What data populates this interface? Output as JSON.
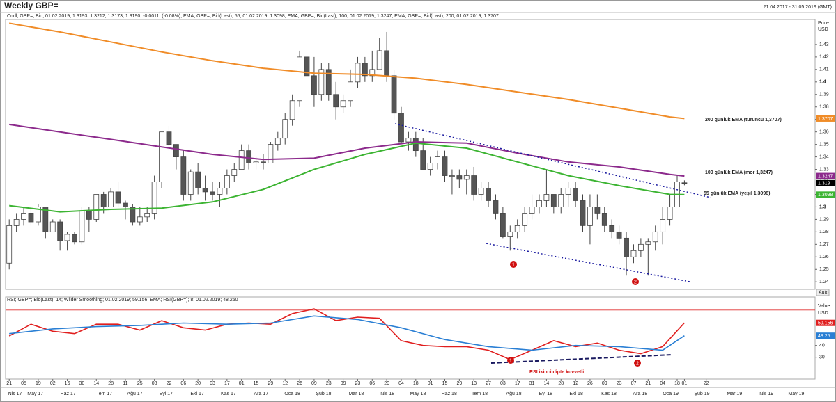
{
  "chart_data": {
    "type": "candlestick",
    "title": "Weekly GBP=",
    "date_range": "21.04.2017 - 31.05.2019 (GMT)",
    "legend_text": "Cndl; GBP=; Bid; 01.02.2019; 1.3193; 1.3212; 1.3173; 1.3190; -0.0011; (-0.08%); EMA; GBP=; Bid(Last); 55; 01.02.2019; 1.3098; EMA; GBP=; Bid(Last); 100; 01.02.2019; 1.3247; EMA; GBP=; Bid(Last); 200; 01.02.2019; 1.3707",
    "y_label": "Price",
    "y_unit": "USD",
    "auto_label": "Auto",
    "ylim": [
      1.234,
      1.45
    ],
    "yticks": [
      1.24,
      1.25,
      1.26,
      1.27,
      1.28,
      1.29,
      1.3,
      1.31,
      1.32,
      1.33,
      1.34,
      1.35,
      1.36,
      1.37,
      1.38,
      1.39,
      1.4,
      1.41,
      1.42,
      1.43
    ],
    "xlim": [
      -0.5,
      111
    ],
    "candles": [
      [
        1.255,
        1.29,
        1.25,
        1.285
      ],
      [
        1.285,
        1.295,
        1.28,
        1.29
      ],
      [
        1.29,
        1.3,
        1.285,
        1.295
      ],
      [
        1.295,
        1.298,
        1.285,
        1.288
      ],
      [
        1.288,
        1.302,
        1.285,
        1.3
      ],
      [
        1.3,
        1.3,
        1.275,
        1.28
      ],
      [
        1.28,
        1.29,
        1.28,
        1.288
      ],
      [
        1.288,
        1.29,
        1.265,
        1.273
      ],
      [
        1.273,
        1.28,
        1.265,
        1.278
      ],
      [
        1.278,
        1.28,
        1.27,
        1.272
      ],
      [
        1.272,
        1.3,
        1.27,
        1.297
      ],
      [
        1.297,
        1.3,
        1.28,
        1.29
      ],
      [
        1.29,
        1.31,
        1.288,
        1.31
      ],
      [
        1.31,
        1.312,
        1.295,
        1.3
      ],
      [
        1.3,
        1.315,
        1.3,
        1.312
      ],
      [
        1.312,
        1.32,
        1.3,
        1.303
      ],
      [
        1.303,
        1.305,
        1.29,
        1.3
      ],
      [
        1.3,
        1.302,
        1.285,
        1.288
      ],
      [
        1.288,
        1.3,
        1.285,
        1.292
      ],
      [
        1.292,
        1.3,
        1.288,
        1.295
      ],
      [
        1.295,
        1.325,
        1.29,
        1.32
      ],
      [
        1.32,
        1.36,
        1.315,
        1.36
      ],
      [
        1.36,
        1.365,
        1.345,
        1.35
      ],
      [
        1.35,
        1.35,
        1.33,
        1.34
      ],
      [
        1.34,
        1.345,
        1.305,
        1.31
      ],
      [
        1.31,
        1.33,
        1.305,
        1.328
      ],
      [
        1.328,
        1.335,
        1.31,
        1.315
      ],
      [
        1.315,
        1.325,
        1.305,
        1.312
      ],
      [
        1.312,
        1.32,
        1.305,
        1.31
      ],
      [
        1.31,
        1.32,
        1.3,
        1.315
      ],
      [
        1.315,
        1.33,
        1.31,
        1.325
      ],
      [
        1.325,
        1.335,
        1.32,
        1.33
      ],
      [
        1.33,
        1.35,
        1.33,
        1.345
      ],
      [
        1.345,
        1.35,
        1.33,
        1.335
      ],
      [
        1.335,
        1.34,
        1.33,
        1.336
      ],
      [
        1.336,
        1.342,
        1.33,
        1.335
      ],
      [
        1.335,
        1.352,
        1.335,
        1.35
      ],
      [
        1.35,
        1.36,
        1.345,
        1.355
      ],
      [
        1.355,
        1.375,
        1.35,
        1.37
      ],
      [
        1.37,
        1.39,
        1.365,
        1.385
      ],
      [
        1.385,
        1.425,
        1.38,
        1.42
      ],
      [
        1.42,
        1.43,
        1.4,
        1.405
      ],
      [
        1.405,
        1.42,
        1.38,
        1.39
      ],
      [
        1.39,
        1.415,
        1.385,
        1.41
      ],
      [
        1.41,
        1.415,
        1.385,
        1.39
      ],
      [
        1.39,
        1.4,
        1.37,
        1.38
      ],
      [
        1.38,
        1.39,
        1.375,
        1.385
      ],
      [
        1.385,
        1.41,
        1.38,
        1.4
      ],
      [
        1.4,
        1.42,
        1.395,
        1.415
      ],
      [
        1.415,
        1.42,
        1.4,
        1.405
      ],
      [
        1.405,
        1.425,
        1.4,
        1.41
      ],
      [
        1.41,
        1.435,
        1.41,
        1.425
      ],
      [
        1.425,
        1.44,
        1.4,
        1.405
      ],
      [
        1.405,
        1.41,
        1.37,
        1.375
      ],
      [
        1.375,
        1.38,
        1.35,
        1.352
      ],
      [
        1.352,
        1.36,
        1.345,
        1.355
      ],
      [
        1.355,
        1.36,
        1.34,
        1.345
      ],
      [
        1.345,
        1.355,
        1.33,
        1.33
      ],
      [
        1.33,
        1.34,
        1.325,
        1.335
      ],
      [
        1.335,
        1.345,
        1.33,
        1.34
      ],
      [
        1.34,
        1.345,
        1.32,
        1.325
      ],
      [
        1.325,
        1.33,
        1.31,
        1.325
      ],
      [
        1.325,
        1.33,
        1.315,
        1.322
      ],
      [
        1.322,
        1.33,
        1.31,
        1.325
      ],
      [
        1.325,
        1.332,
        1.305,
        1.31
      ],
      [
        1.31,
        1.32,
        1.305,
        1.315
      ],
      [
        1.315,
        1.32,
        1.3,
        1.305
      ],
      [
        1.305,
        1.31,
        1.29,
        1.295
      ],
      [
        1.295,
        1.3,
        1.275,
        1.276
      ],
      [
        1.276,
        1.285,
        1.265,
        1.28
      ],
      [
        1.28,
        1.29,
        1.275,
        1.285
      ],
      [
        1.285,
        1.3,
        1.28,
        1.295
      ],
      [
        1.295,
        1.31,
        1.29,
        1.3
      ],
      [
        1.3,
        1.31,
        1.295,
        1.305
      ],
      [
        1.305,
        1.33,
        1.3,
        1.31
      ],
      [
        1.31,
        1.31,
        1.295,
        1.3
      ],
      [
        1.3,
        1.315,
        1.295,
        1.31
      ],
      [
        1.31,
        1.32,
        1.3,
        1.315
      ],
      [
        1.315,
        1.32,
        1.3,
        1.305
      ],
      [
        1.305,
        1.31,
        1.28,
        1.285
      ],
      [
        1.285,
        1.31,
        1.27,
        1.3
      ],
      [
        1.3,
        1.31,
        1.29,
        1.295
      ],
      [
        1.295,
        1.3,
        1.28,
        1.285
      ],
      [
        1.285,
        1.29,
        1.275,
        1.28
      ],
      [
        1.28,
        1.285,
        1.27,
        1.275
      ],
      [
        1.275,
        1.28,
        1.245,
        1.26
      ],
      [
        1.26,
        1.27,
        1.255,
        1.265
      ],
      [
        1.265,
        1.275,
        1.26,
        1.27
      ],
      [
        1.27,
        1.275,
        1.245,
        1.272
      ],
      [
        1.272,
        1.285,
        1.265,
        1.28
      ],
      [
        1.28,
        1.3,
        1.27,
        1.29
      ],
      [
        1.29,
        1.31,
        1.285,
        1.3
      ],
      [
        1.3,
        1.325,
        1.3,
        1.32
      ],
      [
        1.3193,
        1.3212,
        1.3173,
        1.319
      ]
    ],
    "up_color": "#ffffff",
    "down_color": "#555555",
    "ema_x": [
      0,
      7,
      14,
      21,
      28,
      35,
      42,
      49,
      56,
      63,
      70,
      77,
      84,
      91,
      93
    ],
    "series": [
      {
        "name": "200",
        "color": "#f08c28",
        "values": [
          1.447,
          1.44,
          1.432,
          1.424,
          1.417,
          1.411,
          1.407,
          1.406,
          1.403,
          1.398,
          1.392,
          1.386,
          1.379,
          1.372,
          1.3707
        ]
      },
      {
        "name": "100",
        "color": "#8c2a8c",
        "values": [
          1.366,
          1.36,
          1.354,
          1.348,
          1.342,
          1.338,
          1.339,
          1.347,
          1.352,
          1.351,
          1.343,
          1.336,
          1.332,
          1.326,
          1.3247
        ]
      },
      {
        "name": "55",
        "color": "#3cb432",
        "values": [
          1.301,
          1.296,
          1.298,
          1.299,
          1.304,
          1.314,
          1.33,
          1.342,
          1.351,
          1.347,
          1.336,
          1.325,
          1.317,
          1.31,
          1.3098
        ]
      }
    ],
    "annotations": [
      "200 günlük EMA (turuncu 1,3707)",
      "100 günlük EMA (mor 1,3247)",
      "55 günlük EMA (yeşil 1,3098)"
    ],
    "markers": [
      "1",
      "2"
    ],
    "rsi": {
      "legend_text": "RSI; GBP=; Bid(Last); 14; Wilder Smoothing; 01.02.2019; 59.156; EMA; RSI(GBP=); 8; 01.02.2019; 48.250",
      "y_label": "Value",
      "y_unit": "USD",
      "ylim": [
        11.5,
        81.1
      ],
      "yticks": [
        30,
        40
      ],
      "levels": [
        70,
        30
      ],
      "level_color": "#e03030",
      "annotation": "RSI ikinci dipte kuvvetli",
      "series": [
        {
          "name": "RSI",
          "color": "#e01e1e",
          "x": [
            0,
            3,
            6,
            9,
            12,
            15,
            18,
            21,
            24,
            27,
            30,
            33,
            36,
            39,
            42,
            45,
            48,
            51,
            54,
            57,
            60,
            63,
            66,
            69,
            72,
            75,
            78,
            81,
            84,
            87,
            90,
            93
          ],
          "values": [
            48,
            58,
            52,
            50,
            58,
            58,
            53,
            61,
            55,
            53,
            58,
            59,
            58,
            67,
            71,
            61,
            64,
            63,
            44,
            40,
            39,
            39,
            36,
            28,
            36,
            44,
            39,
            42,
            36,
            33,
            39,
            59.156
          ]
        },
        {
          "name": "EMA",
          "color": "#2a7fd4",
          "x": [
            0,
            6,
            12,
            18,
            24,
            30,
            36,
            42,
            48,
            54,
            60,
            66,
            72,
            78,
            84,
            90,
            93
          ],
          "values": [
            50,
            54,
            56,
            57,
            59,
            58,
            59,
            65,
            62,
            55,
            45,
            39,
            36,
            40,
            39,
            36,
            48.25
          ]
        }
      ]
    },
    "day_ticks": [
      {
        "value": 0,
        "label": "21"
      },
      {
        "value": 2,
        "label": "05"
      },
      {
        "value": 4,
        "label": "19"
      },
      {
        "value": 6,
        "label": "02"
      },
      {
        "value": 8,
        "label": "16"
      },
      {
        "value": 10,
        "label": "30"
      },
      {
        "value": 12,
        "label": "14"
      },
      {
        "value": 14,
        "label": "28"
      },
      {
        "value": 16,
        "label": "11"
      },
      {
        "value": 18,
        "label": "25"
      },
      {
        "value": 20,
        "label": "08"
      },
      {
        "value": 22,
        "label": "22"
      },
      {
        "value": 24,
        "label": "06"
      },
      {
        "value": 26,
        "label": "20"
      },
      {
        "value": 28,
        "label": "03"
      },
      {
        "value": 30,
        "label": "17"
      },
      {
        "value": 32,
        "label": "01"
      },
      {
        "value": 34,
        "label": "15"
      },
      {
        "value": 36,
        "label": "29"
      },
      {
        "value": 38,
        "label": "12"
      },
      {
        "value": 40,
        "label": "26"
      },
      {
        "value": 42,
        "label": "09"
      },
      {
        "value": 44,
        "label": "23"
      },
      {
        "value": 46,
        "label": "09"
      },
      {
        "value": 48,
        "label": "23"
      },
      {
        "value": 50,
        "label": "06"
      },
      {
        "value": 52,
        "label": "20"
      },
      {
        "value": 54,
        "label": "04"
      },
      {
        "value": 56,
        "label": "18"
      },
      {
        "value": 58,
        "label": "01"
      },
      {
        "value": 60,
        "label": "15"
      },
      {
        "value": 62,
        "label": "29"
      },
      {
        "value": 64,
        "label": "13"
      },
      {
        "value": 66,
        "label": "27"
      },
      {
        "value": 68,
        "label": "03"
      },
      {
        "value": 70,
        "label": "17"
      },
      {
        "value": 72,
        "label": "31"
      },
      {
        "value": 74,
        "label": "14"
      },
      {
        "value": 76,
        "label": "28"
      },
      {
        "value": 78,
        "label": "12"
      },
      {
        "value": 80,
        "label": "26"
      },
      {
        "value": 82,
        "label": "09"
      },
      {
        "value": 84,
        "label": "23"
      },
      {
        "value": 86,
        "label": "07"
      },
      {
        "value": 88,
        "label": "21"
      },
      {
        "value": 90,
        "label": "04"
      },
      {
        "value": 92,
        "label": "18"
      },
      {
        "value": 93,
        "label": "01"
      },
      {
        "value": 96,
        "label": "22"
      }
    ],
    "month_ticks": [
      {
        "value": 0.8,
        "label": "Nis 17"
      },
      {
        "value": 3.6,
        "label": "May 17"
      },
      {
        "value": 8.1,
        "label": "Haz 17"
      },
      {
        "value": 13.1,
        "label": "Tem 17"
      },
      {
        "value": 17.3,
        "label": "Ağu 17"
      },
      {
        "value": 21.6,
        "label": "Eyl 17"
      },
      {
        "value": 25.9,
        "label": "Eki 17"
      },
      {
        "value": 30.2,
        "label": "Kas 17"
      },
      {
        "value": 34.7,
        "label": "Ara 17"
      },
      {
        "value": 39,
        "label": "Oca 18"
      },
      {
        "value": 43.3,
        "label": "Şub 18"
      },
      {
        "value": 47.8,
        "label": "Mar 18"
      },
      {
        "value": 52.1,
        "label": "Nis 18"
      },
      {
        "value": 56.3,
        "label": "May 18"
      },
      {
        "value": 60.6,
        "label": "Haz 18"
      },
      {
        "value": 64.8,
        "label": "Tem 18"
      },
      {
        "value": 69.5,
        "label": "Ağu 18"
      },
      {
        "value": 73.9,
        "label": "Eyl 18"
      },
      {
        "value": 78.1,
        "label": "Eki 18"
      },
      {
        "value": 82.6,
        "label": "Kas 18"
      },
      {
        "value": 86.9,
        "label": "Ara 18"
      },
      {
        "value": 91.1,
        "label": "Oca 19"
      },
      {
        "value": 95.4,
        "label": "Şub 19"
      },
      {
        "value": 99.9,
        "label": "Mar 19"
      },
      {
        "value": 104.3,
        "label": "Nis 19"
      },
      {
        "value": 108.4,
        "label": "May 19"
      }
    ]
  }
}
